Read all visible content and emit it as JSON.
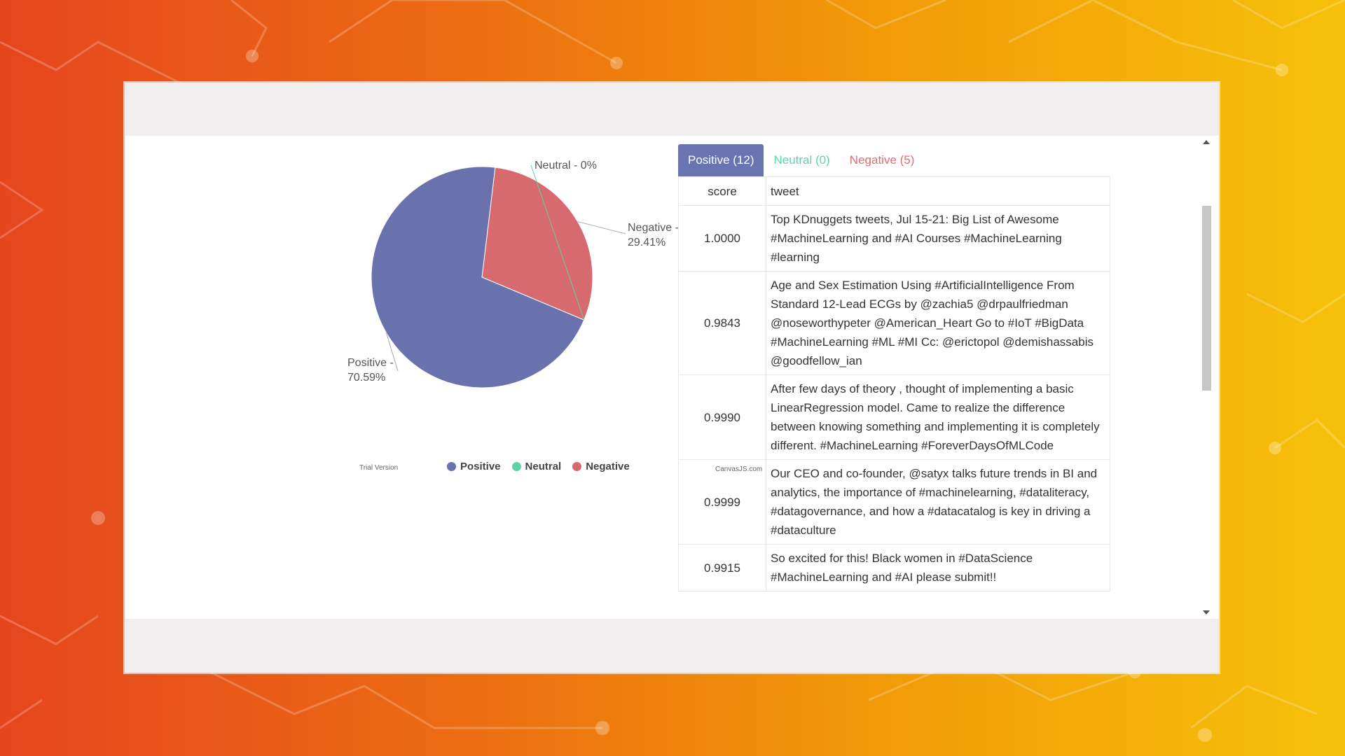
{
  "chart_data": {
    "type": "pie",
    "slices": [
      {
        "label": "Positive",
        "value": 70.59,
        "color": "#6a72ad"
      },
      {
        "label": "Neutral",
        "value": 0,
        "color": "#5fd3a4"
      },
      {
        "label": "Negative",
        "value": 29.41,
        "color": "#d66a6f"
      }
    ],
    "index_labels": [
      "Positive - 70.59%",
      "Neutral - 0%",
      "Negative - 29.41%"
    ],
    "legend": [
      "Positive",
      "Neutral",
      "Negative"
    ],
    "legend_position": "bottom"
  },
  "chart": {
    "trial_text": "Trial Version",
    "credit_text": "CanvasJS.com",
    "menu_icon": "hamburger-menu-icon"
  },
  "tabs": [
    {
      "label": "Positive (12)"
    },
    {
      "label": "Neutral (0)"
    },
    {
      "label": "Negative (5)"
    }
  ],
  "table": {
    "headers": {
      "score": "score",
      "tweet": "tweet"
    },
    "rows": [
      {
        "score": "1.0000",
        "tweet": "Top KDnuggets tweets, Jul 15-21: Big List of Awesome #MachineLearning and #AI Courses #MachineLearning #learning"
      },
      {
        "score": "0.9843",
        "tweet": "Age and Sex Estimation Using #ArtificialIntelligence From Standard 12-Lead ECGs by @zachia5 @drpaulfriedman @noseworthypeter @American_Heart Go to #IoT #BigData #MachineLearning #ML #MI Cc: @erictopol @demishassabis @goodfellow_ian"
      },
      {
        "score": "0.9990",
        "tweet": "After few days of theory , thought of implementing a basic LinearRegression model. Came to realize the difference between knowing something and implementing it is completely different. #MachineLearning #ForeverDaysOfMLCode"
      },
      {
        "score": "0.9999",
        "tweet": "Our CEO and co-founder, @satyx talks future trends in BI and analytics, the importance of #machinelearning, #dataliteracy, #datagovernance, and how a #datacatalog is key in driving a #dataculture"
      },
      {
        "score": "0.9915",
        "tweet": "So excited for this! Black women in #DataScience #MachineLearning and #AI please submit!!"
      }
    ]
  },
  "colors": {
    "tab_active": "#6a74b0",
    "neutral": "#5fd3a4",
    "negative": "#e06d72"
  }
}
